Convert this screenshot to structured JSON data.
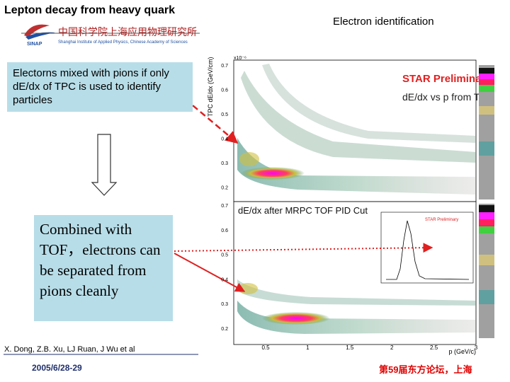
{
  "header": {
    "title": "Lepton decay from heavy quark",
    "subtitle": "Electron identification",
    "logo": "SINAP",
    "institute_cn": "中国科学院上海应用物理研究所",
    "institute_en": "Shanghai Institute of Applied Physics, Chinese Academy of Sciences"
  },
  "callouts": [
    "Electorns mixed with pions if only dE/dx of TPC is used to identify particles",
    "Combined with TOF，electrons can be separated from pions cleanly"
  ],
  "plots": {
    "top": {
      "label": "STAR Preliminary",
      "title": "dE/dx vs p from TPC",
      "y_label": "TPC dE/dx (GeV/cm)",
      "y_exponent": "x10⁻⁶",
      "yticks": [
        "0.7",
        "0.6",
        "0.5",
        "0.4",
        "0.3",
        "0.2"
      ]
    },
    "bottom": {
      "label": "STAR Preliminary",
      "title": "dE/dx after MRPC TOF PID Cut",
      "yticks": [
        "0.7",
        "0.6",
        "0.5",
        "0.4",
        "0.3",
        "0.2"
      ],
      "xticks": [
        "0.5",
        "1",
        "1.5",
        "2",
        "2.5",
        "3"
      ],
      "x_label": "p (GeV/c)"
    }
  },
  "footer": {
    "authors": "X. Dong, Z.B. Xu, LJ Ruan, J Wu et al",
    "date": "2005/6/28-29",
    "event": "第59届东方论坛，上海"
  }
}
